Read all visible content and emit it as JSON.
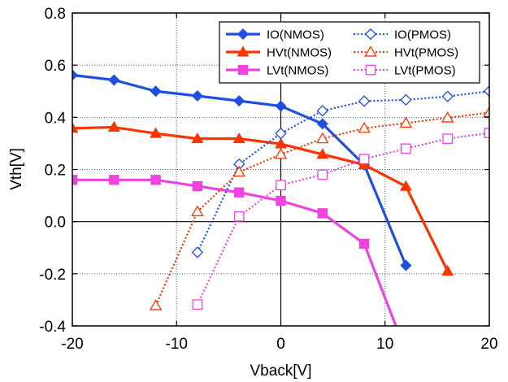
{
  "chart_data": {
    "type": "line",
    "xlabel": "Vback[V]",
    "ylabel": "Vth[V]",
    "xlim": [
      -20,
      20
    ],
    "ylim": [
      -0.4,
      0.8
    ],
    "x_ticks": [
      -20,
      -10,
      0,
      10,
      20
    ],
    "x_tick_labels": [
      "-20",
      "-10",
      "0",
      "10",
      "20"
    ],
    "y_ticks": [
      -0.4,
      -0.2,
      0.0,
      0.2,
      0.4,
      0.6,
      0.8
    ],
    "y_tick_labels": [
      "-0.4",
      "-0.2",
      "0.0",
      "0.2",
      "0.4",
      "0.6",
      "0.8"
    ],
    "grid": "dotted",
    "legend_position": "top-right",
    "series": [
      {
        "name": "IO(NMOS)",
        "color": "#1f4fe0",
        "marker": "diamond-filled",
        "dash": "solid",
        "points": [
          [
            -20,
            0.562
          ],
          [
            -16,
            0.543
          ],
          [
            -12,
            0.5
          ],
          [
            -8,
            0.482
          ],
          [
            -4,
            0.463
          ],
          [
            0,
            0.443
          ],
          [
            4,
            0.375
          ],
          [
            8,
            0.218
          ],
          [
            12,
            -0.168
          ]
        ]
      },
      {
        "name": "HVt(NMOS)",
        "color": "#ff3300",
        "marker": "triangle-filled",
        "dash": "solid",
        "points": [
          [
            -20,
            0.358
          ],
          [
            -16,
            0.362
          ],
          [
            -12,
            0.338
          ],
          [
            -8,
            0.318
          ],
          [
            -4,
            0.318
          ],
          [
            0,
            0.298
          ],
          [
            4,
            0.258
          ],
          [
            8,
            0.218
          ],
          [
            12,
            0.135
          ],
          [
            16,
            -0.19
          ]
        ]
      },
      {
        "name": "LVt(NMOS)",
        "color": "#ee44dd",
        "marker": "square-filled",
        "dash": "solid",
        "points": [
          [
            -20,
            0.16
          ],
          [
            -16,
            0.16
          ],
          [
            -12,
            0.16
          ],
          [
            -8,
            0.136
          ],
          [
            -4,
            0.112
          ],
          [
            0,
            0.08
          ],
          [
            4,
            0.032
          ],
          [
            8,
            -0.085
          ],
          [
            12,
            -0.5
          ]
        ]
      },
      {
        "name": "IO(PMOS)",
        "color": "#1f4fe0",
        "marker": "diamond-open",
        "dash": "dotted",
        "points": [
          [
            -8,
            -0.118
          ],
          [
            -4,
            0.22
          ],
          [
            0,
            0.338
          ],
          [
            4,
            0.425
          ],
          [
            8,
            0.462
          ],
          [
            12,
            0.467
          ],
          [
            16,
            0.48
          ],
          [
            20,
            0.5
          ]
        ]
      },
      {
        "name": "HVt(PMOS)",
        "color": "#ff3300",
        "marker": "triangle-open",
        "dash": "dotted",
        "points": [
          [
            -12,
            -0.322
          ],
          [
            -8,
            0.038
          ],
          [
            -4,
            0.19
          ],
          [
            0,
            0.258
          ],
          [
            4,
            0.318
          ],
          [
            8,
            0.358
          ],
          [
            12,
            0.378
          ],
          [
            16,
            0.398
          ],
          [
            20,
            0.418
          ]
        ]
      },
      {
        "name": "LVt(PMOS)",
        "color": "#ee44dd",
        "marker": "square-open",
        "dash": "dotted",
        "points": [
          [
            -8,
            -0.318
          ],
          [
            -4,
            0.02
          ],
          [
            0,
            0.14
          ],
          [
            4,
            0.18
          ],
          [
            8,
            0.24
          ],
          [
            12,
            0.28
          ],
          [
            16,
            0.318
          ],
          [
            20,
            0.34
          ]
        ]
      }
    ]
  }
}
